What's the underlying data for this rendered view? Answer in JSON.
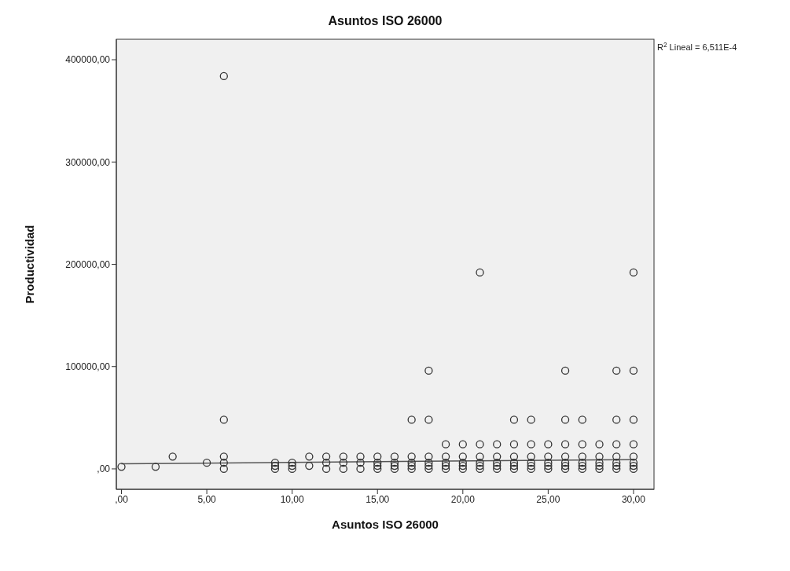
{
  "chart_data": {
    "type": "scatter",
    "title": "Asuntos ISO 26000",
    "xlabel": "Asuntos ISO 26000",
    "ylabel": "Productividad",
    "annotations": [
      "R$^{2}$ Lineal = 6,511E-4"
    ],
    "xlim": [
      -0.3,
      31.2
    ],
    "xticks": [
      {
        "value": 0,
        "label": ",00"
      },
      {
        "value": 5,
        "label": "5,00"
      },
      {
        "value": 10,
        "label": "10,00"
      },
      {
        "value": 15,
        "label": "15,00"
      },
      {
        "value": 20,
        "label": "20,00"
      },
      {
        "value": 25,
        "label": "25,00"
      },
      {
        "value": 30,
        "label": "30,00"
      }
    ],
    "ylim": [
      -20000,
      420000
    ],
    "yticks": [
      {
        "value": 0,
        "label": ",00"
      },
      {
        "value": 100000,
        "label": "100000,00"
      },
      {
        "value": 200000,
        "label": "200000,00"
      },
      {
        "value": 300000,
        "label": "300000,00"
      },
      {
        "value": 400000,
        "label": "400000,00"
      }
    ],
    "series": [
      {
        "marker": "circle",
        "color": "#333333",
        "x": [
          0,
          2,
          3,
          5,
          6,
          6,
          6,
          6,
          6,
          9,
          9,
          9,
          10,
          10,
          10,
          11,
          11,
          12,
          12,
          12,
          13,
          13,
          13,
          14,
          14,
          14,
          15,
          15,
          15,
          15,
          16,
          16,
          16,
          16,
          17,
          17,
          17,
          17,
          17,
          18,
          18,
          18,
          18,
          18,
          18,
          19,
          19,
          19,
          19,
          19,
          20,
          20,
          20,
          20,
          20,
          21,
          21,
          21,
          21,
          21,
          21,
          22,
          22,
          22,
          22,
          22,
          23,
          23,
          23,
          23,
          23,
          23,
          24,
          24,
          24,
          24,
          24,
          24,
          25,
          25,
          25,
          25,
          25,
          26,
          26,
          26,
          26,
          26,
          26,
          26,
          27,
          27,
          27,
          27,
          27,
          27,
          28,
          28,
          28,
          28,
          28,
          29,
          29,
          29,
          29,
          29,
          29,
          29,
          30,
          30,
          30,
          30,
          30,
          30,
          30,
          30
        ],
        "values": [
          2000,
          2000,
          12000,
          6000,
          384000,
          48000,
          12000,
          6000,
          0,
          6000,
          3000,
          0,
          6000,
          3000,
          0,
          12000,
          3000,
          12000,
          6000,
          0,
          12000,
          6000,
          0,
          12000,
          6000,
          0,
          12000,
          6000,
          3000,
          0,
          12000,
          6000,
          3000,
          0,
          48000,
          12000,
          6000,
          3000,
          0,
          96000,
          48000,
          12000,
          6000,
          3000,
          0,
          24000,
          12000,
          6000,
          3000,
          0,
          24000,
          12000,
          6000,
          3000,
          0,
          192000,
          24000,
          12000,
          6000,
          3000,
          0,
          24000,
          12000,
          6000,
          3000,
          0,
          48000,
          24000,
          12000,
          6000,
          3000,
          0,
          48000,
          24000,
          12000,
          6000,
          3000,
          0,
          24000,
          12000,
          6000,
          3000,
          0,
          96000,
          48000,
          24000,
          12000,
          6000,
          3000,
          0,
          48000,
          24000,
          12000,
          6000,
          3000,
          0,
          24000,
          12000,
          6000,
          3000,
          0,
          96000,
          48000,
          24000,
          12000,
          6000,
          3000,
          0,
          192000,
          96000,
          48000,
          24000,
          12000,
          6000,
          3000,
          0
        ]
      },
      {
        "type": "line",
        "color": "#555555",
        "x": [
          0,
          30
        ],
        "values": [
          5000,
          9000
        ]
      }
    ]
  }
}
